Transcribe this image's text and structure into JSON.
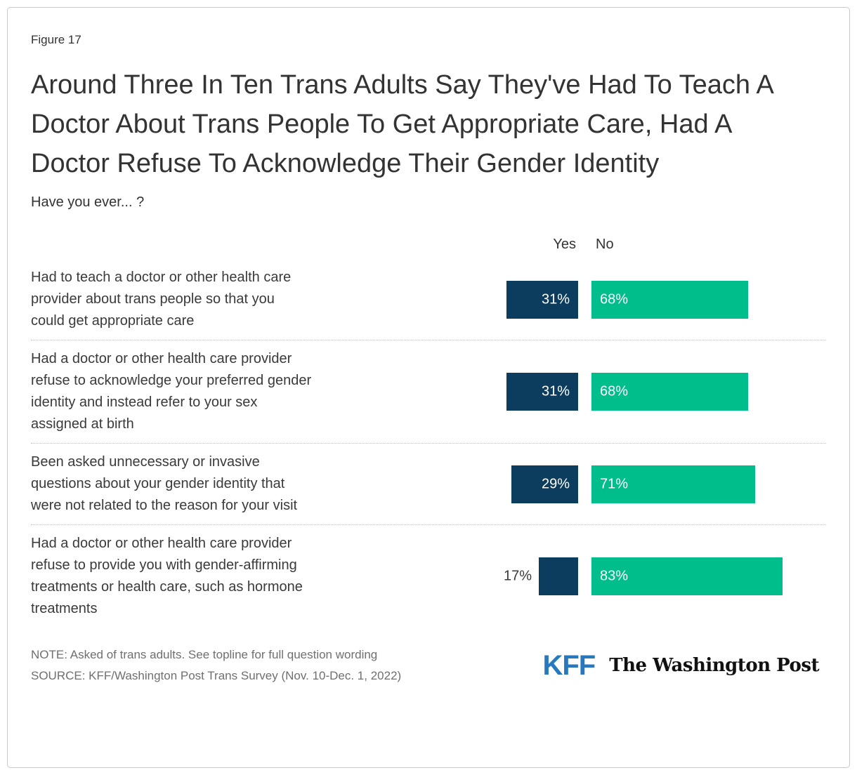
{
  "figure": {
    "label": "Figure 17",
    "title": "Around Three In Ten Trans Adults Say They've Had To Teach A Doctor About Trans People To Get Appropriate Care, Had A Doctor Refuse To Acknowledge Their Gender Identity",
    "subtitle": "Have you ever... ?"
  },
  "chart_data": {
    "type": "bar",
    "orientation": "horizontal",
    "title": "Around Three In Ten Trans Adults Say They've Had To Teach A Doctor About Trans People To Get Appropriate Care, Had A Doctor Refuse To Acknowledge Their Gender Identity",
    "subtitle": "Have you ever... ?",
    "categories": [
      "Had to teach a doctor or other health care provider about trans people so that you could get appropriate care",
      "Had a doctor or other health care provider refuse to acknowledge your preferred gender identity and instead refer to your sex assigned at birth",
      "Been asked unnecessary or invasive questions about your gender identity that were not related to the reason for your visit",
      "Had a doctor or other health care provider refuse to provide you with gender-affirming treatments or health care, such as hormone treatments"
    ],
    "series": [
      {
        "name": "Yes",
        "color": "#0D3D5E",
        "values": [
          31,
          31,
          29,
          17
        ]
      },
      {
        "name": "No",
        "color": "#00BE8B",
        "values": [
          68,
          68,
          71,
          83
        ]
      }
    ],
    "value_suffix": "%",
    "value_labels": "inside bars, white; labels under 20% drawn outside in dark gray",
    "legend_position": "column headers above bars",
    "grid": "dotted row separators"
  },
  "footer": {
    "note": "NOTE: Asked of trans adults. See topline for full question wording",
    "source": "SOURCE: KFF/Washington Post Trans Survey (Nov. 10-Dec. 1, 2022)",
    "logos": {
      "kff": "KFF",
      "wapo": "The Washington Post"
    }
  },
  "colors": {
    "yes_bar": "#0D3D5E",
    "no_bar": "#00BE8B",
    "kff_blue": "#2878BE",
    "text": "#333333",
    "note_gray": "#6F6F6F",
    "separator": "#BDBDBD",
    "card_border": "#C9C9C9"
  }
}
